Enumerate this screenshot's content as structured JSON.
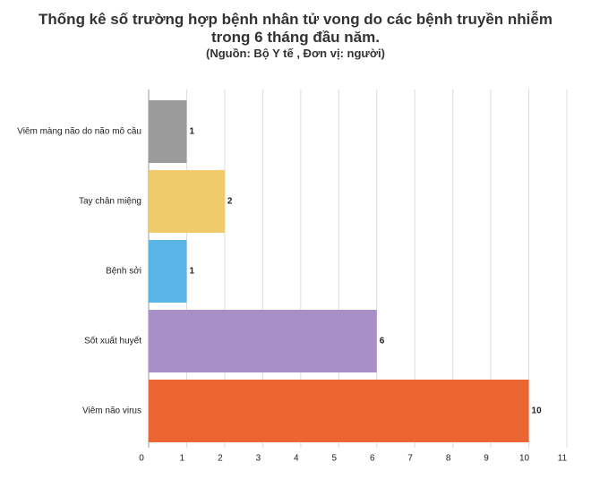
{
  "chart_data": {
    "type": "bar",
    "orientation": "horizontal",
    "title": "Thống kê số trường hợp bệnh nhân tử vong do các bệnh truyền nhiễm trong 6 tháng đầu năm.",
    "subtitle": "(Nguồn: Bộ Y tế , Đơn vị: người)",
    "categories": [
      "Viêm màng não do não mô cầu",
      "Tay chân miệng",
      "Bệnh sởi",
      "Sốt xuất huyết",
      "Viêm não virus"
    ],
    "values": [
      1,
      2,
      1,
      6,
      10
    ],
    "colors": [
      "#9b9b9b",
      "#f0cb6b",
      "#5ab4e5",
      "#a98fc8",
      "#ec6634"
    ],
    "xlim": [
      0,
      11
    ],
    "xticks": [
      0,
      1,
      2,
      3,
      4,
      5,
      6,
      7,
      8,
      9,
      10,
      11
    ],
    "grid": true
  }
}
